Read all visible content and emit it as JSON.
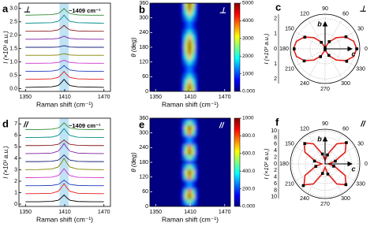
{
  "chart_data": [
    {
      "type": "line",
      "label": "a",
      "symbol": "⊥",
      "annotation": "~1409 cm⁻¹",
      "xlabel": "Raman shift (cm⁻¹)",
      "ylabel": "I (×10³ a.u.)",
      "x": [
        1350,
        1370,
        1390,
        1400,
        1405,
        1409,
        1413,
        1418,
        1430,
        1450,
        1470
      ],
      "series": [
        {
          "color": "#000000",
          "values": [
            0.05,
            0.06,
            0.07,
            0.12,
            0.23,
            0.35,
            0.23,
            0.12,
            0.07,
            0.06,
            0.05
          ]
        },
        {
          "color": "#e41a1c",
          "values": [
            0.35,
            0.36,
            0.37,
            0.42,
            0.53,
            0.65,
            0.53,
            0.42,
            0.37,
            0.36,
            0.35
          ]
        },
        {
          "color": "#1f3fbf",
          "values": [
            0.65,
            0.65,
            0.66,
            0.7,
            0.78,
            0.87,
            0.78,
            0.7,
            0.66,
            0.65,
            0.65
          ]
        },
        {
          "color": "#cc33cc",
          "values": [
            0.95,
            0.95,
            0.96,
            0.98,
            1.02,
            1.07,
            1.02,
            0.98,
            0.96,
            0.95,
            0.95
          ]
        },
        {
          "color": "#808000",
          "values": [
            1.25,
            1.25,
            1.25,
            1.26,
            1.29,
            1.31,
            1.29,
            1.26,
            1.25,
            1.25,
            1.25
          ]
        },
        {
          "color": "#1a237e",
          "values": [
            1.55,
            1.55,
            1.55,
            1.56,
            1.59,
            1.61,
            1.59,
            1.56,
            1.55,
            1.55,
            1.55
          ]
        },
        {
          "color": "#7b1fa2",
          "values": [
            1.85,
            1.85,
            1.86,
            1.88,
            1.92,
            1.97,
            1.92,
            1.88,
            1.86,
            1.85,
            1.85
          ]
        },
        {
          "color": "#8b1a1a",
          "values": [
            2.15,
            2.15,
            2.16,
            2.2,
            2.28,
            2.37,
            2.28,
            2.2,
            2.16,
            2.15,
            2.15
          ]
        },
        {
          "color": "#008b8b",
          "values": [
            2.45,
            2.46,
            2.47,
            2.52,
            2.63,
            2.75,
            2.63,
            2.52,
            2.47,
            2.46,
            2.45
          ]
        },
        {
          "color": "#2e8b2e",
          "values": [
            2.75,
            2.76,
            2.77,
            2.81,
            2.9,
            3.0,
            2.9,
            2.81,
            2.76,
            2.75,
            2.75
          ]
        }
      ],
      "band": [
        1402,
        1416
      ],
      "band_color": "#bfe3f5",
      "xlim": [
        1340,
        1480
      ],
      "ylim": [
        -0.1,
        3.2
      ],
      "xticks": [
        1350,
        1410,
        1470
      ],
      "yticks": [
        {
          "value": 0,
          "label": "0.0"
        },
        0.5,
        {
          "value": 1,
          "label": "1.0"
        },
        1.5,
        {
          "value": 2,
          "label": "2.0"
        },
        2.5,
        {
          "value": 3,
          "label": "3.0"
        }
      ]
    },
    {
      "type": "heatmap",
      "label": "b",
      "symbol": "⊥",
      "xlabel": "Raman shift (cm⁻¹)",
      "ylabel": "θ (deg)",
      "colormap": "jet",
      "x": [
        1397,
        1403,
        1409,
        1415,
        1421
      ],
      "cell_width": 6,
      "y": [
        0,
        20,
        40,
        60,
        80,
        100,
        120,
        140,
        160,
        180,
        200,
        220,
        240,
        260,
        280,
        300,
        320,
        340,
        360
      ],
      "cell_height": 20,
      "z": [
        [
          750,
          3000,
          5000,
          3000,
          750
        ],
        [
          680,
          2730,
          4560,
          2730,
          680
        ],
        [
          510,
          2060,
          3430,
          2060,
          510
        ],
        [
          320,
          1290,
          2150,
          1290,
          320
        ],
        [
          200,
          790,
          1310,
          790,
          200
        ],
        [
          200,
          790,
          1310,
          790,
          200
        ],
        [
          320,
          1290,
          2150,
          1290,
          320
        ],
        [
          510,
          2060,
          3430,
          2060,
          510
        ],
        [
          680,
          2730,
          4560,
          2730,
          680
        ],
        [
          750,
          3000,
          5000,
          3000,
          750
        ],
        [
          680,
          2730,
          4560,
          2730,
          680
        ],
        [
          510,
          2060,
          3430,
          2060,
          510
        ],
        [
          320,
          1290,
          2150,
          1290,
          320
        ],
        [
          200,
          790,
          1310,
          790,
          200
        ],
        [
          200,
          790,
          1310,
          790,
          200
        ],
        [
          320,
          1290,
          2150,
          1290,
          320
        ],
        [
          510,
          2060,
          3430,
          2060,
          510
        ],
        [
          680,
          2730,
          4560,
          2730,
          680
        ],
        [
          750,
          3000,
          5000,
          3000,
          750
        ]
      ],
      "xlim": [
        1340,
        1480
      ],
      "ylim": [
        0,
        360
      ],
      "xticks": [
        1350,
        1410,
        1470
      ],
      "yticks": [
        0,
        60,
        120,
        180,
        240,
        300,
        360
      ],
      "zlim": [
        0,
        5000
      ],
      "zticks": [
        {
          "value": 0,
          "label": "0.000"
        },
        1000,
        2000,
        3000,
        4000,
        5000
      ]
    },
    {
      "type": "polar",
      "label": "c",
      "symbol": "⊥",
      "rlabel": "I (×10³ a.u.)",
      "crystal_axes": [
        "b",
        "c"
      ],
      "angle_ticks": [
        0,
        30,
        60,
        90,
        120,
        150,
        180,
        210,
        240,
        270,
        300,
        330
      ],
      "rlim": [
        0,
        2.3
      ],
      "rticks": [
        0,
        1,
        2
      ],
      "points": {
        "theta": [
          0,
          30,
          60,
          90,
          120,
          150,
          180,
          210,
          240,
          270,
          300,
          330
        ],
        "r": [
          2.1,
          1.6,
          0.55,
          0.05,
          0.5,
          1.55,
          2.05,
          1.6,
          0.6,
          0.05,
          0.5,
          1.65
        ],
        "color": "#000000"
      },
      "fit": {
        "color": "#e0201b",
        "theta": [
          0,
          15,
          30,
          45,
          60,
          75,
          90,
          105,
          120,
          135,
          150,
          165,
          180,
          195,
          210,
          225,
          240,
          255,
          270,
          285,
          300,
          315,
          330,
          345,
          360
        ],
        "r": [
          2.1,
          1.96,
          1.58,
          1.05,
          0.53,
          0.14,
          0,
          0.14,
          0.53,
          1.05,
          1.58,
          1.96,
          2.1,
          1.96,
          1.58,
          1.05,
          0.53,
          0.14,
          0,
          0.14,
          0.53,
          1.05,
          1.58,
          1.96,
          2.1
        ]
      }
    },
    {
      "type": "line",
      "label": "d",
      "symbol": "//",
      "annotation": "~1409 cm⁻¹",
      "xlabel": "Raman shift (cm⁻¹)",
      "ylabel": "I (×10³ a.u.)",
      "x": [
        1350,
        1370,
        1390,
        1400,
        1405,
        1409,
        1413,
        1418,
        1430,
        1450,
        1470
      ],
      "series": [
        {
          "color": "#000000",
          "values": [
            0.21,
            0.21,
            0.24,
            0.34,
            0.56,
            0.8,
            0.56,
            0.34,
            0.23,
            0.21,
            0.21
          ]
        },
        {
          "color": "#e41a1c",
          "values": [
            0.91,
            0.92,
            0.95,
            1.12,
            1.44,
            1.8,
            1.44,
            1.12,
            0.95,
            0.92,
            0.91
          ]
        },
        {
          "color": "#1f3fbf",
          "values": [
            1.61,
            1.61,
            1.63,
            1.72,
            1.9,
            2.1,
            1.9,
            1.72,
            1.63,
            1.61,
            1.61
          ]
        },
        {
          "color": "#cc33cc",
          "values": [
            2.31,
            2.32,
            2.35,
            2.49,
            2.78,
            3.1,
            2.78,
            2.49,
            2.34,
            2.32,
            2.31
          ]
        },
        {
          "color": "#808000",
          "values": [
            3.01,
            3.02,
            3.06,
            3.24,
            3.6,
            4.0,
            3.6,
            3.24,
            3.05,
            3.02,
            3.01
          ]
        },
        {
          "color": "#1a237e",
          "values": [
            3.71,
            3.71,
            3.74,
            3.84,
            4.06,
            4.3,
            4.06,
            3.84,
            3.73,
            3.71,
            3.71
          ]
        },
        {
          "color": "#7b1fa2",
          "values": [
            4.41,
            4.42,
            4.45,
            4.62,
            4.94,
            5.3,
            4.94,
            4.62,
            4.45,
            4.42,
            4.41
          ]
        },
        {
          "color": "#8b1a1a",
          "values": [
            5.11,
            5.11,
            5.13,
            5.22,
            5.4,
            5.6,
            5.4,
            5.22,
            5.13,
            5.11,
            5.11
          ]
        },
        {
          "color": "#008b8b",
          "values": [
            5.81,
            5.82,
            5.85,
            5.99,
            6.28,
            6.6,
            6.28,
            5.99,
            5.84,
            5.82,
            5.81
          ]
        },
        {
          "color": "#2e8b2e",
          "values": [
            6.51,
            6.51,
            6.54,
            6.64,
            6.86,
            7.1,
            6.86,
            6.64,
            6.53,
            6.51,
            6.51
          ]
        }
      ],
      "band": [
        1402,
        1416
      ],
      "band_color": "#bfe3f5",
      "xlim": [
        1340,
        1480
      ],
      "ylim": [
        -0.2,
        7.5
      ],
      "xticks": [
        1350,
        1410,
        1470
      ],
      "yticks": [
        0,
        1,
        2,
        3,
        4,
        5,
        6,
        7
      ]
    },
    {
      "type": "heatmap",
      "label": "e",
      "symbol": "//",
      "xlabel": "Raman shift (cm⁻¹)",
      "ylabel": "θ (deg)",
      "colormap": "jet",
      "x": [
        1397,
        1403,
        1409,
        1415,
        1421
      ],
      "cell_width": 6,
      "y": [
        0,
        20,
        40,
        60,
        80,
        100,
        120,
        140,
        160,
        180,
        200,
        220,
        240,
        260,
        280,
        300,
        320,
        340,
        360
      ],
      "cell_height": 20,
      "z": [
        [
          30,
          120,
          200,
          120,
          30
        ],
        [
          80,
          320,
          530,
          320,
          80
        ],
        [
          150,
          590,
          980,
          590,
          150
        ],
        [
          120,
          480,
          800,
          480,
          120
        ],
        [
          40,
          170,
          290,
          170,
          40
        ],
        [
          40,
          170,
          290,
          170,
          40
        ],
        [
          120,
          480,
          800,
          480,
          120
        ],
        [
          150,
          590,
          980,
          590,
          150
        ],
        [
          80,
          320,
          530,
          320,
          80
        ],
        [
          30,
          120,
          200,
          120,
          30
        ],
        [
          80,
          320,
          530,
          320,
          80
        ],
        [
          150,
          590,
          980,
          590,
          150
        ],
        [
          120,
          480,
          800,
          480,
          120
        ],
        [
          40,
          170,
          290,
          170,
          40
        ],
        [
          40,
          170,
          290,
          170,
          40
        ],
        [
          120,
          480,
          800,
          480,
          120
        ],
        [
          150,
          590,
          980,
          590,
          150
        ],
        [
          80,
          320,
          530,
          320,
          80
        ],
        [
          30,
          120,
          200,
          120,
          30
        ]
      ],
      "xlim": [
        1340,
        1480
      ],
      "ylim": [
        0,
        360
      ],
      "xticks": [
        1350,
        1410,
        1470
      ],
      "yticks": [
        0,
        60,
        120,
        180,
        240,
        300,
        360
      ],
      "zlim": [
        0,
        1000
      ],
      "zticks": [
        {
          "value": 0,
          "label": "0.000"
        },
        {
          "value": 200,
          "label": "200.0"
        },
        {
          "value": 400,
          "label": "400.0"
        },
        {
          "value": 600,
          "label": "600.0"
        },
        {
          "value": 800,
          "label": "800.0"
        },
        1000
      ]
    },
    {
      "type": "polar",
      "label": "f",
      "symbol": "//",
      "rlabel": "I (×10² a.u.)",
      "crystal_axes": [
        "b",
        "c"
      ],
      "angle_ticks": [
        0,
        30,
        60,
        90,
        120,
        150,
        180,
        210,
        240,
        270,
        300,
        330
      ],
      "rlim": [
        0,
        10.5
      ],
      "rticks": [
        0,
        2,
        4,
        6,
        8,
        10
      ],
      "points": {
        "theta": [
          15,
          45,
          75,
          105,
          135,
          165,
          195,
          225,
          255,
          285,
          315,
          345
        ],
        "r": [
          3.2,
          9.1,
          2.8,
          3.1,
          8.7,
          3.3,
          2.9,
          9.3,
          3.0,
          3.2,
          8.9,
          2.7
        ],
        "color": "#000000"
      },
      "fit": {
        "color": "#e0201b",
        "theta": [
          0,
          15,
          30,
          45,
          60,
          75,
          90,
          105,
          120,
          135,
          150,
          165,
          180,
          195,
          210,
          225,
          240,
          255,
          270,
          285,
          300,
          315,
          330,
          345,
          360
        ],
        "r": [
          1,
          3,
          7,
          9,
          7,
          3,
          1,
          3,
          7,
          9,
          7,
          3,
          1,
          3,
          7,
          9,
          7,
          3,
          1,
          3,
          7,
          9,
          7,
          3,
          1
        ]
      }
    }
  ]
}
